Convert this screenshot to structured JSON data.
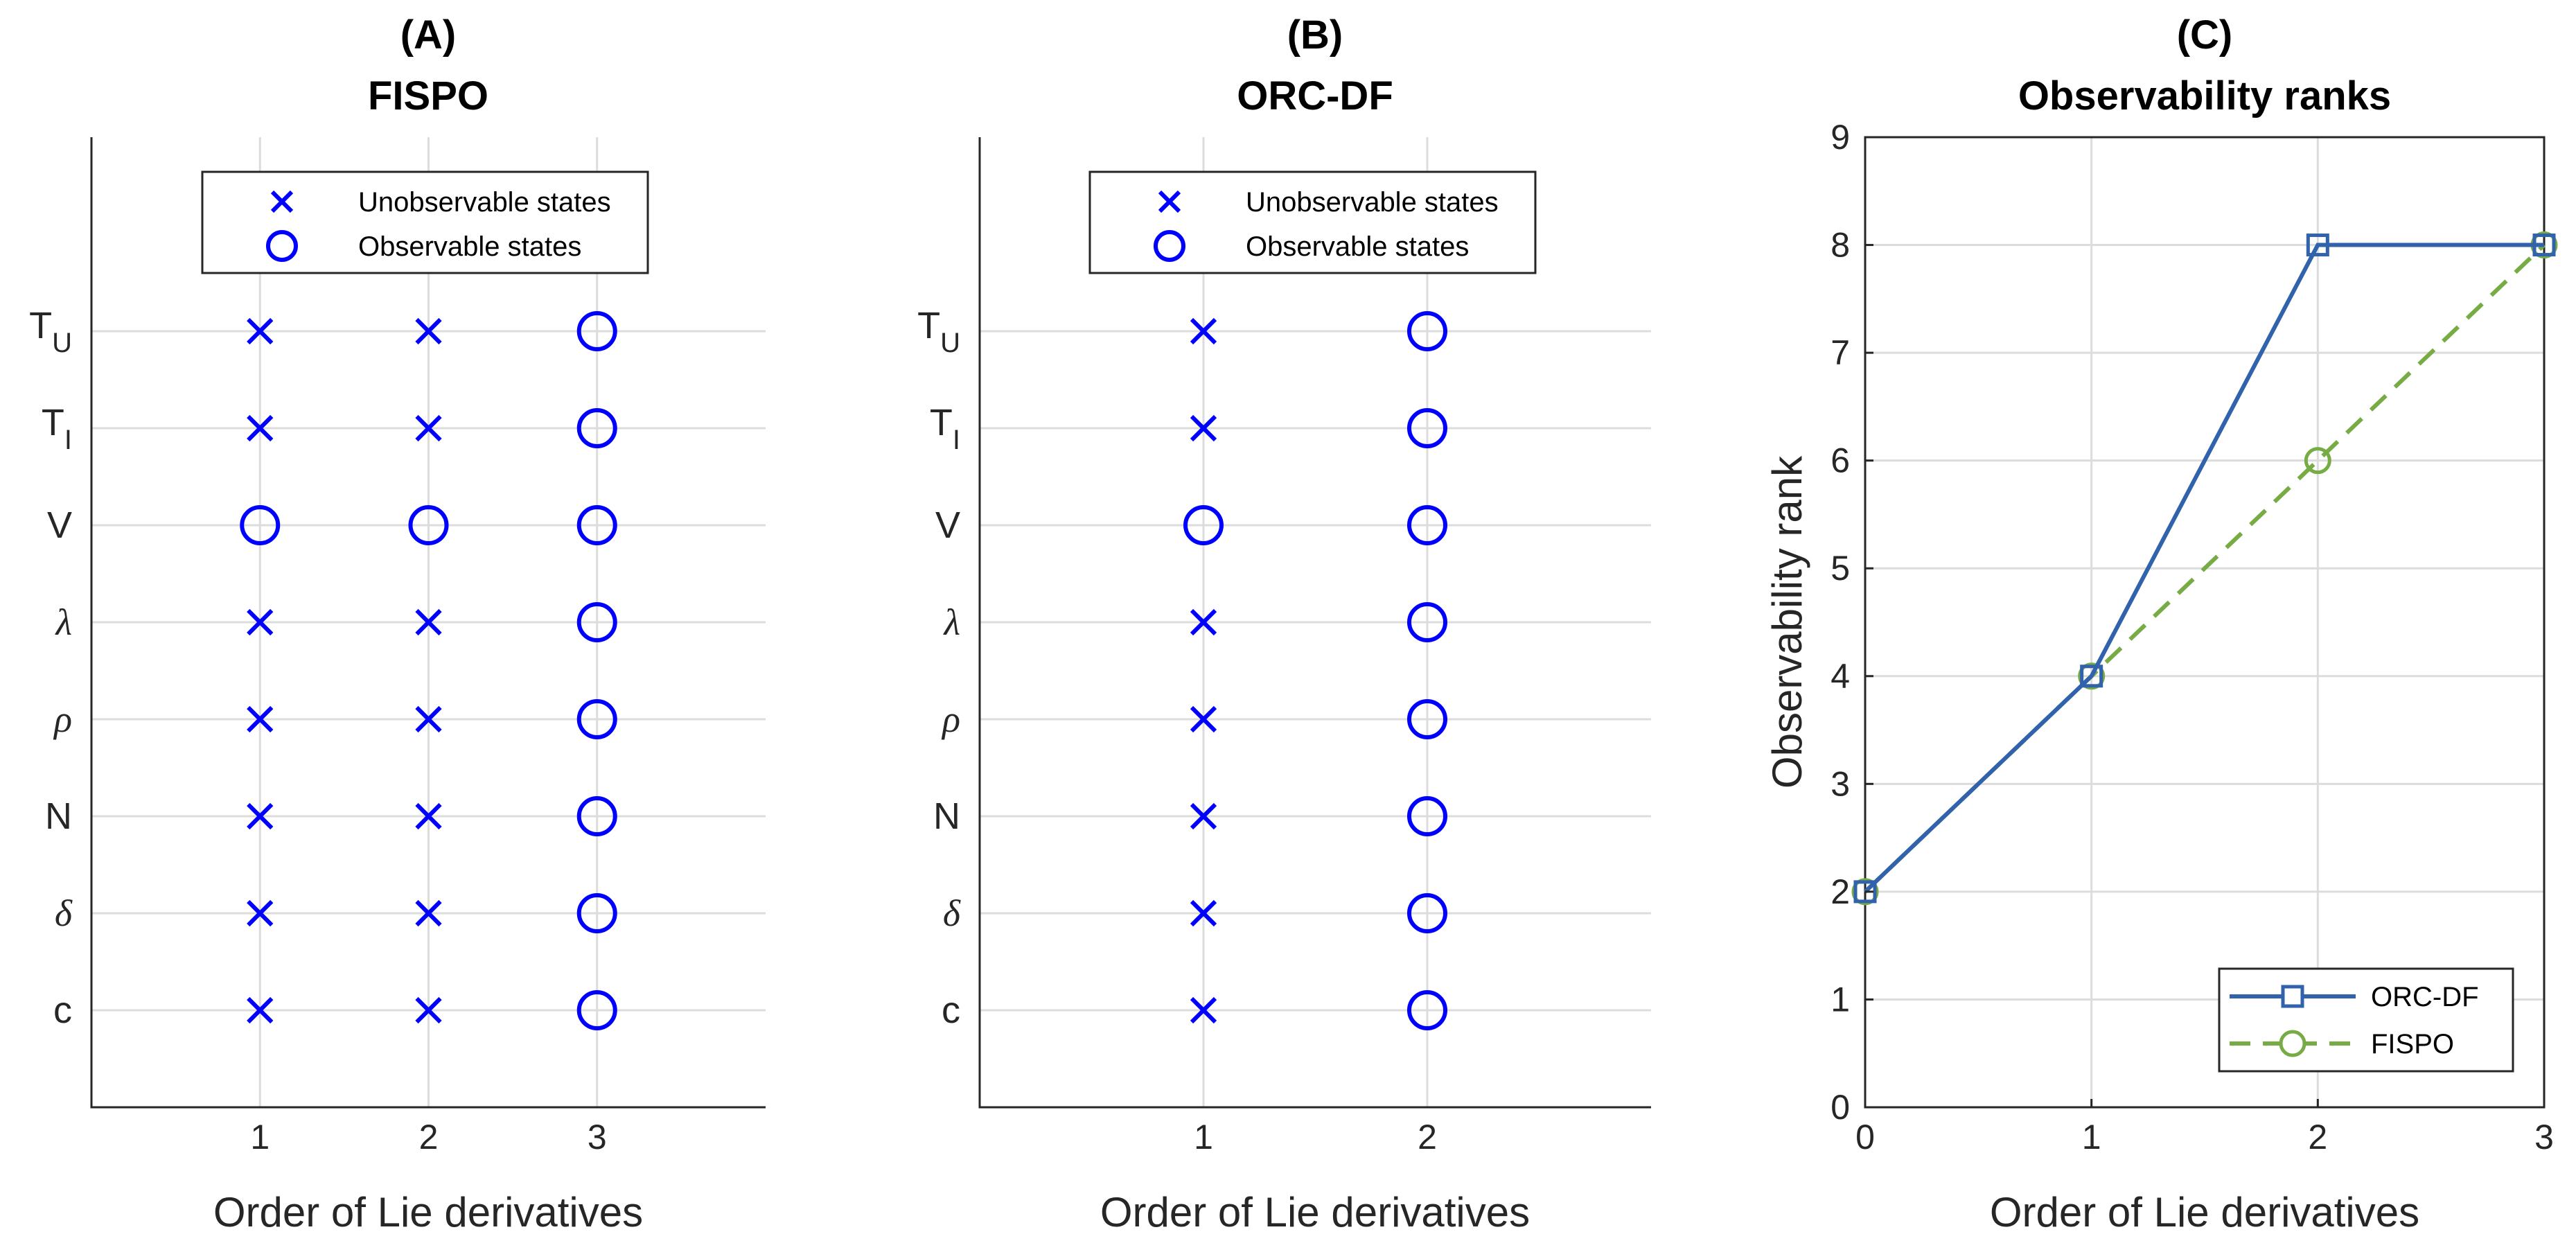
{
  "chart_data": [
    {
      "id": "A",
      "type": "scatter",
      "panel_label": "(A)",
      "title": "FISPO",
      "xlabel": "Order of Lie derivatives",
      "ylabel": "",
      "xlim": [
        0,
        4
      ],
      "xticks": [
        "1",
        "2",
        "3"
      ],
      "states": [
        {
          "name": "T",
          "sub": "U",
          "italic": false
        },
        {
          "name": "T",
          "sub": "I",
          "italic": false
        },
        {
          "name": "V",
          "sub": "",
          "italic": false
        },
        {
          "name": "λ",
          "sub": "",
          "italic": true
        },
        {
          "name": "ρ",
          "sub": "",
          "italic": true
        },
        {
          "name": "N",
          "sub": "",
          "italic": false
        },
        {
          "name": "δ",
          "sub": "",
          "italic": true
        },
        {
          "name": "c",
          "sub": "",
          "italic": false
        }
      ],
      "observability": [
        [
          "x",
          "x",
          "o"
        ],
        [
          "x",
          "x",
          "o"
        ],
        [
          "o",
          "o",
          "o"
        ],
        [
          "x",
          "x",
          "o"
        ],
        [
          "x",
          "x",
          "o"
        ],
        [
          "x",
          "x",
          "o"
        ],
        [
          "x",
          "x",
          "o"
        ],
        [
          "x",
          "x",
          "o"
        ]
      ],
      "legend": [
        {
          "marker": "x",
          "label": "Unobservable states"
        },
        {
          "marker": "o",
          "label": "Observable states"
        }
      ],
      "marker_color": "#0000ff"
    },
    {
      "id": "B",
      "type": "scatter",
      "panel_label": "(B)",
      "title": "ORC-DF",
      "xlabel": "Order of Lie derivatives",
      "ylabel": "",
      "xlim": [
        0,
        3
      ],
      "xticks": [
        "1",
        "2"
      ],
      "states": [
        {
          "name": "T",
          "sub": "U",
          "italic": false
        },
        {
          "name": "T",
          "sub": "I",
          "italic": false
        },
        {
          "name": "V",
          "sub": "",
          "italic": false
        },
        {
          "name": "λ",
          "sub": "",
          "italic": true
        },
        {
          "name": "ρ",
          "sub": "",
          "italic": true
        },
        {
          "name": "N",
          "sub": "",
          "italic": false
        },
        {
          "name": "δ",
          "sub": "",
          "italic": true
        },
        {
          "name": "c",
          "sub": "",
          "italic": false
        }
      ],
      "observability": [
        [
          "x",
          "o"
        ],
        [
          "x",
          "o"
        ],
        [
          "o",
          "o"
        ],
        [
          "x",
          "o"
        ],
        [
          "x",
          "o"
        ],
        [
          "x",
          "o"
        ],
        [
          "x",
          "o"
        ],
        [
          "x",
          "o"
        ]
      ],
      "legend": [
        {
          "marker": "x",
          "label": "Unobservable states"
        },
        {
          "marker": "o",
          "label": "Observable states"
        }
      ],
      "marker_color": "#0000ff"
    },
    {
      "id": "C",
      "type": "line",
      "panel_label": "(C)",
      "title": "Observability ranks",
      "xlabel": "Order of Lie derivatives",
      "ylabel": "Observability rank",
      "xlim": [
        0,
        3
      ],
      "ylim": [
        0,
        9
      ],
      "xticks": [
        "0",
        "1",
        "2",
        "3"
      ],
      "yticks": [
        "0",
        "1",
        "2",
        "3",
        "4",
        "5",
        "6",
        "7",
        "8",
        "9"
      ],
      "x": [
        0,
        1,
        2,
        3
      ],
      "grid": true,
      "legend_position": "bottom-right",
      "series": [
        {
          "name": "ORC-DF",
          "values": [
            2,
            4,
            8,
            8
          ],
          "color": "#3162ac",
          "style": "solid",
          "marker": "square"
        },
        {
          "name": "FISPO",
          "values": [
            2,
            4,
            6,
            8
          ],
          "color": "#77ac45",
          "style": "dashed",
          "marker": "circle"
        }
      ]
    }
  ]
}
